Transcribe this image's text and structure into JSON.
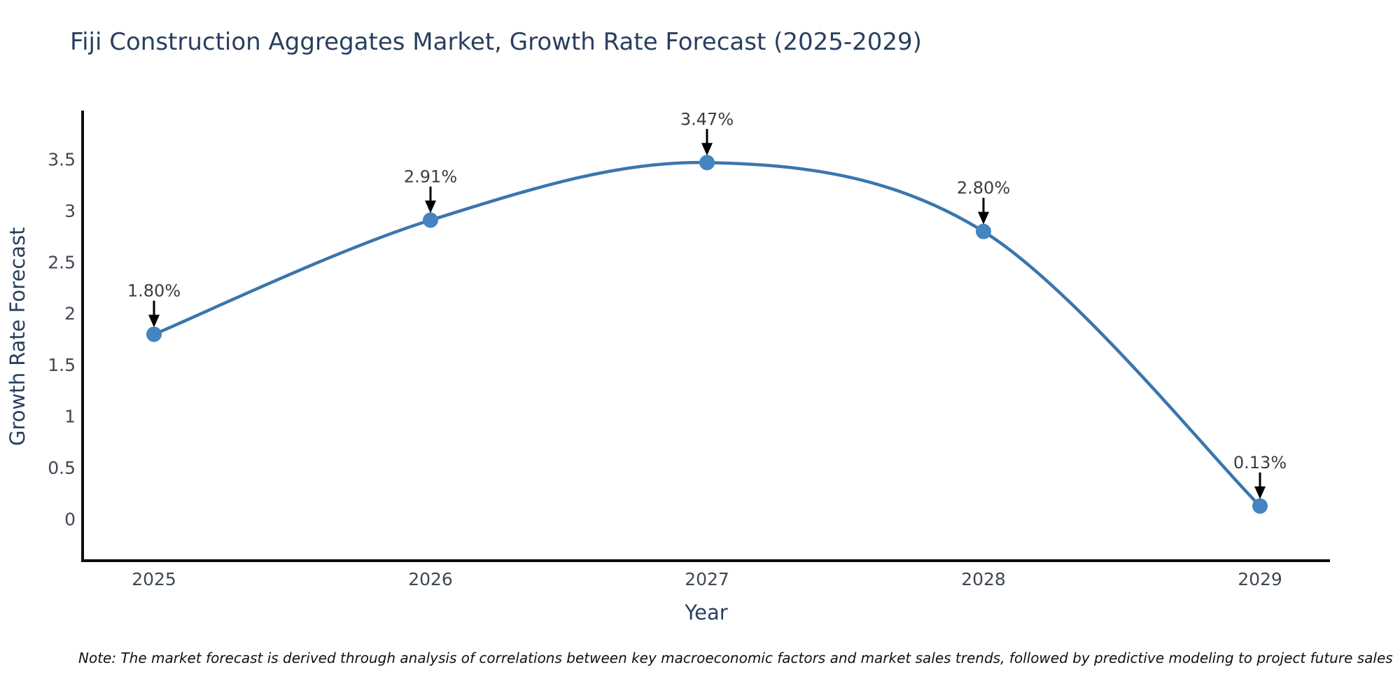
{
  "chart_data": {
    "type": "line",
    "title": "Fiji Construction Aggregates Market, Growth Rate Forecast (2025-2029)",
    "xlabel": "Year",
    "ylabel": "Growth Rate Forecast",
    "categories": [
      "2025",
      "2026",
      "2027",
      "2028",
      "2029"
    ],
    "values": [
      1.8,
      2.91,
      3.47,
      2.8,
      0.13
    ],
    "point_labels": [
      "1.80%",
      "2.91%",
      "3.47%",
      "2.80%",
      "0.13%"
    ],
    "ytick_labels": [
      "0",
      "0.5",
      "1",
      "1.5",
      "2",
      "2.5",
      "3",
      "3.5"
    ],
    "ytick_values": [
      0,
      0.5,
      1,
      1.5,
      2,
      2.5,
      3,
      3.5
    ],
    "ylim": [
      -0.4,
      3.97
    ],
    "grid": false,
    "legend": false,
    "line_shape": "spline",
    "note": "Note: The market forecast is derived through analysis of correlations between key macroeconomic factors and market sales trends, followed by predictive modeling to project future sales",
    "colors": {
      "line": "#3a76ad",
      "marker": "#4484c1",
      "annotation_text": "#3d3d3d",
      "arrow": "#000000",
      "axis_line": "#0d0d0d",
      "tick_label": "#3f4854",
      "axis_title": "#2a3f5f",
      "title": "#2a3f5f",
      "note_text": "#111111",
      "background": "#ffffff"
    }
  }
}
